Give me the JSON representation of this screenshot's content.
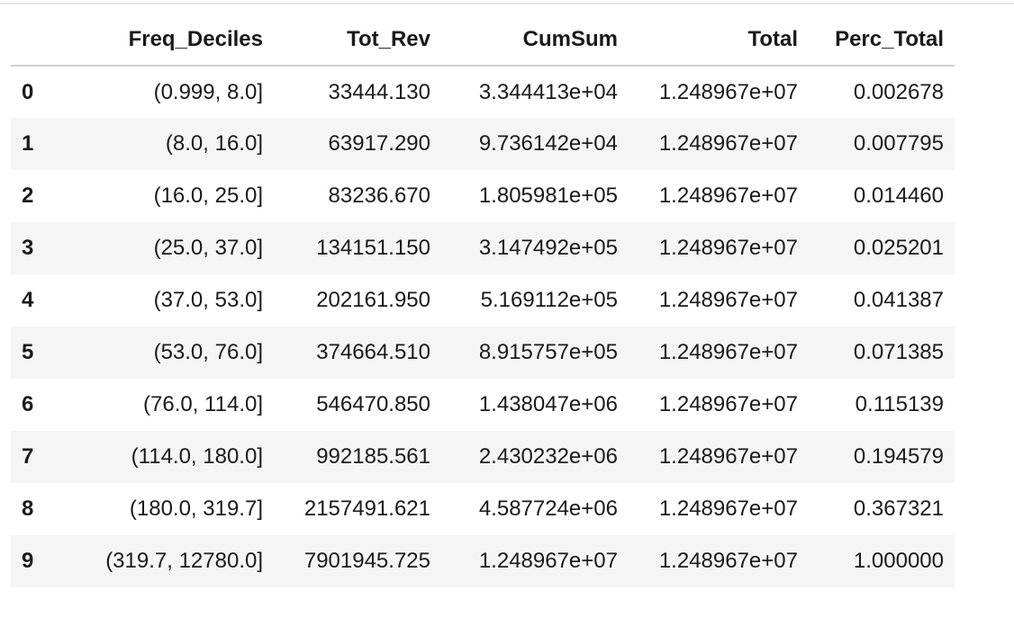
{
  "table": {
    "index_header": "",
    "columns": [
      "Freq_Deciles",
      "Tot_Rev",
      "CumSum",
      "Total",
      "Perc_Total"
    ],
    "rows": [
      {
        "index": "0",
        "cells": [
          "(0.999, 8.0]",
          "33444.130",
          "3.344413e+04",
          "1.248967e+07",
          "0.002678"
        ]
      },
      {
        "index": "1",
        "cells": [
          "(8.0, 16.0]",
          "63917.290",
          "9.736142e+04",
          "1.248967e+07",
          "0.007795"
        ]
      },
      {
        "index": "2",
        "cells": [
          "(16.0, 25.0]",
          "83236.670",
          "1.805981e+05",
          "1.248967e+07",
          "0.014460"
        ]
      },
      {
        "index": "3",
        "cells": [
          "(25.0, 37.0]",
          "134151.150",
          "3.147492e+05",
          "1.248967e+07",
          "0.025201"
        ]
      },
      {
        "index": "4",
        "cells": [
          "(37.0, 53.0]",
          "202161.950",
          "5.169112e+05",
          "1.248967e+07",
          "0.041387"
        ]
      },
      {
        "index": "5",
        "cells": [
          "(53.0, 76.0]",
          "374664.510",
          "8.915757e+05",
          "1.248967e+07",
          "0.071385"
        ]
      },
      {
        "index": "6",
        "cells": [
          "(76.0, 114.0]",
          "546470.850",
          "1.438047e+06",
          "1.248967e+07",
          "0.115139"
        ]
      },
      {
        "index": "7",
        "cells": [
          "(114.0, 180.0]",
          "992185.561",
          "2.430232e+06",
          "1.248967e+07",
          "0.194579"
        ]
      },
      {
        "index": "8",
        "cells": [
          "(180.0, 319.7]",
          "2157491.621",
          "4.587724e+06",
          "1.248967e+07",
          "0.367321"
        ]
      },
      {
        "index": "9",
        "cells": [
          "(319.7, 12780.0]",
          "7901945.725",
          "1.248967e+07",
          "1.248967e+07",
          "1.000000"
        ]
      }
    ]
  },
  "colors": {
    "row_stripe": "#f5f5f5",
    "header_rule": "#cfcfcf",
    "text": "#1a1a1a"
  }
}
